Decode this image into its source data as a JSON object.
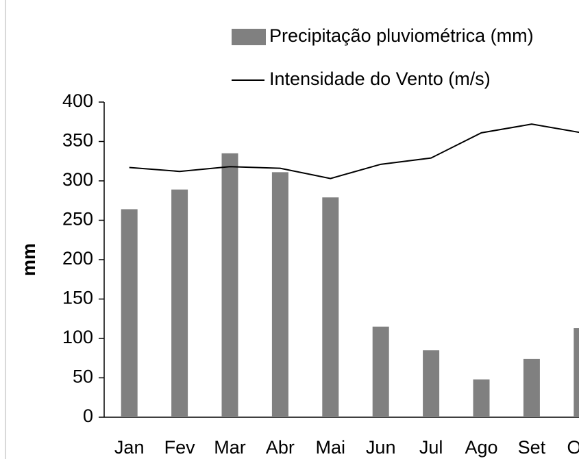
{
  "chart_data": {
    "type": "bar",
    "categories": [
      "Jan",
      "Fev",
      "Mar",
      "Abr",
      "Mai",
      "Jun",
      "Jul",
      "Ago",
      "Set",
      "Out"
    ],
    "y_label": "mm",
    "series": [
      {
        "name": "Precipitação pluviométrica (mm)",
        "type": "bar",
        "color": "#808080",
        "values": [
          264,
          289,
          335,
          311,
          279,
          115,
          85,
          48,
          74,
          113
        ]
      },
      {
        "name": "Intensidade do Vento (m/s)",
        "type": "line",
        "color": "#000000",
        "values": [
          317,
          312,
          318,
          316,
          303,
          321,
          329,
          361,
          372,
          361
        ]
      }
    ],
    "ylim": [
      0,
      400
    ],
    "yticks": [
      0,
      50,
      100,
      150,
      200,
      250,
      300,
      350,
      400
    ],
    "grid": false
  }
}
